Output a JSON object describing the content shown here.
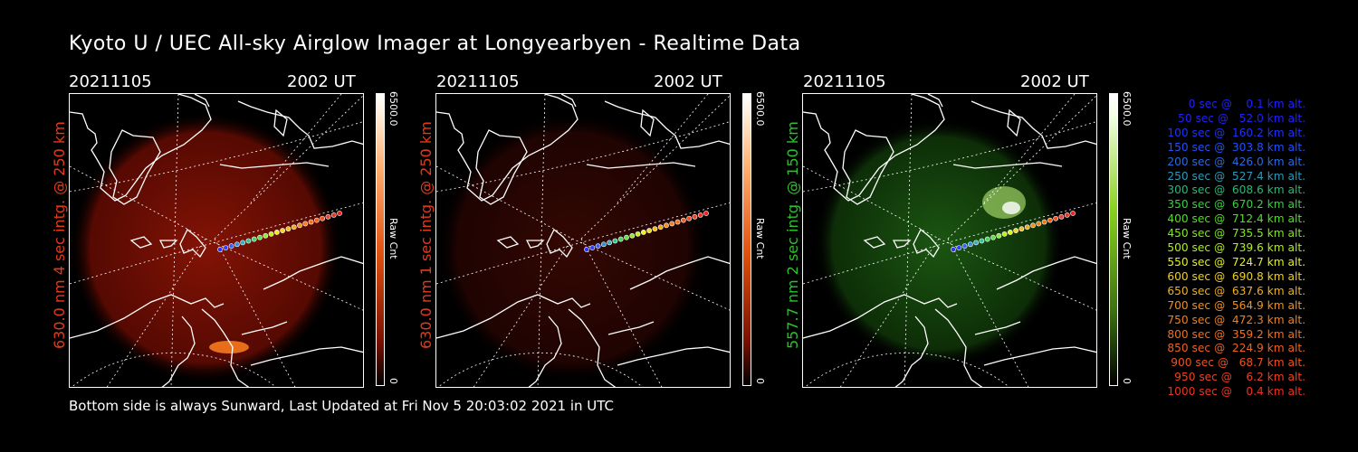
{
  "title": "Kyoto U / UEC All-sky Airglow Imager at Longyearbyen - Realtime Data",
  "panels": [
    {
      "date": "20211105",
      "time": "2002 UT",
      "ylabel": "630.0 nm 4 sec intg. @ 250 km",
      "ylabel_color": "#e23b1c",
      "glow": "red",
      "cbar_max": "6500.0",
      "cbar_min": "0",
      "cbar_unit": "Raw Cnt"
    },
    {
      "date": "20211105",
      "time": "2002 UT",
      "ylabel": "630.0 nm 1 sec intg. @ 250 km",
      "ylabel_color": "#e23b1c",
      "glow": "red-faint",
      "cbar_max": "6500.0",
      "cbar_min": "0",
      "cbar_unit": "Raw Cnt"
    },
    {
      "date": "20211105",
      "time": "2002 UT",
      "ylabel": "557.7 nm 2 sec intg. @ 150 km",
      "ylabel_color": "#2fbf2f",
      "glow": "green",
      "cbar_max": "6500.0",
      "cbar_min": "0",
      "cbar_unit": "Raw Cnt"
    }
  ],
  "footer": "Bottom side is always Sunward, Last Updated at Fri Nov  5 20:03:02 2021 in UTC",
  "legend": [
    {
      "text": "   0 sec @    0.1 km alt.",
      "color": "#2020ff"
    },
    {
      "text": "  50 sec @   52.0 km alt.",
      "color": "#2020ff"
    },
    {
      "text": " 100 sec @  160.2 km alt.",
      "color": "#2030ff"
    },
    {
      "text": " 150 sec @  303.8 km alt.",
      "color": "#2050ff"
    },
    {
      "text": " 200 sec @  426.0 km alt.",
      "color": "#2a6ae0"
    },
    {
      "text": " 250 sec @  527.4 km alt.",
      "color": "#2a9ab8"
    },
    {
      "text": " 300 sec @  608.6 km alt.",
      "color": "#2ab87a"
    },
    {
      "text": " 350 sec @  670.2 km alt.",
      "color": "#3ad040"
    },
    {
      "text": " 400 sec @  712.4 km alt.",
      "color": "#50e020"
    },
    {
      "text": " 450 sec @  735.5 km alt.",
      "color": "#80e820"
    },
    {
      "text": " 500 sec @  739.6 km alt.",
      "color": "#b0ee20"
    },
    {
      "text": " 550 sec @  724.7 km alt.",
      "color": "#e0f020"
    },
    {
      "text": " 600 sec @  690.8 km alt.",
      "color": "#f0d020"
    },
    {
      "text": " 650 sec @  637.6 km alt.",
      "color": "#f0b020"
    },
    {
      "text": " 700 sec @  564.9 km alt.",
      "color": "#f09020"
    },
    {
      "text": " 750 sec @  472.3 km alt.",
      "color": "#f08020"
    },
    {
      "text": " 800 sec @  359.2 km alt.",
      "color": "#f07020"
    },
    {
      "text": " 850 sec @  224.9 km alt.",
      "color": "#f06020"
    },
    {
      "text": " 900 sec @   68.7 km alt.",
      "color": "#f05020"
    },
    {
      "text": " 950 sec @    6.2 km alt.",
      "color": "#f04020"
    },
    {
      "text": "1000 sec @    0.4 km alt.",
      "color": "#f03020"
    }
  ]
}
